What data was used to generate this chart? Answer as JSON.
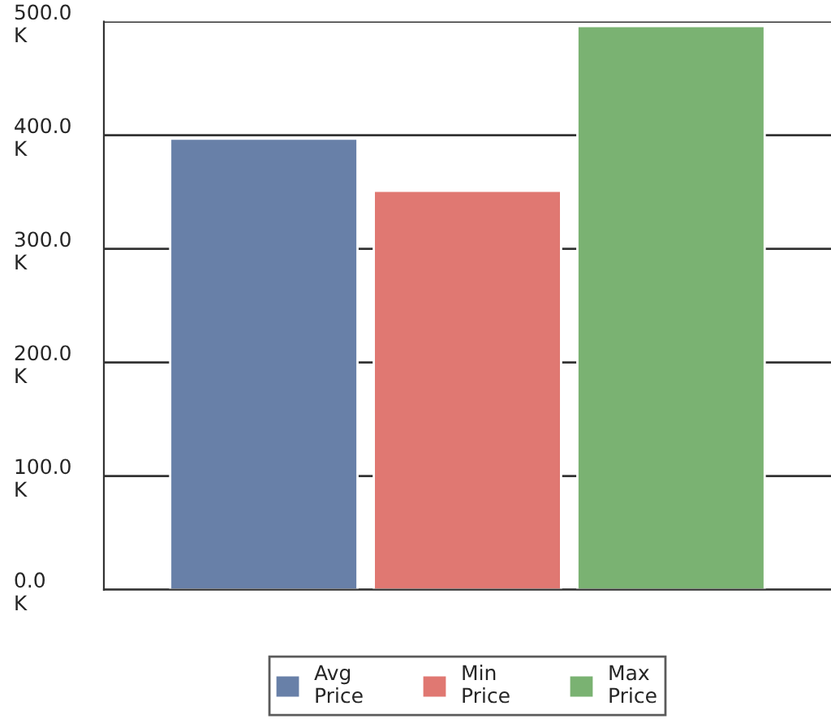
{
  "chart_data": {
    "type": "bar",
    "categories": [
      null
    ],
    "series": [
      {
        "name": "Avg Price",
        "color": "#6880a8",
        "values": [
          397000
        ]
      },
      {
        "name": "Min Price",
        "color": "#e07872",
        "values": [
          351000
        ]
      },
      {
        "name": "Max Price",
        "color": "#7ab272",
        "values": [
          496000
        ]
      }
    ],
    "ylim": [
      0,
      500000
    ],
    "yticks": [
      {
        "value": 0,
        "label": "0.0 K"
      },
      {
        "value": 100000,
        "label": "100.0 K"
      },
      {
        "value": 200000,
        "label": "200.0 K"
      },
      {
        "value": 300000,
        "label": "300.0 K"
      },
      {
        "value": 400000,
        "label": "400.0 K"
      },
      {
        "value": 500000,
        "label": "500.0 K"
      }
    ],
    "grid": "y",
    "legend": "bottom"
  }
}
